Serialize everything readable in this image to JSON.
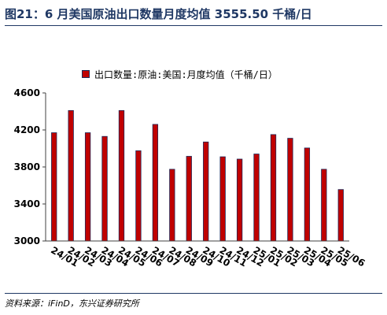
{
  "figure": {
    "title": "图21：6 月美国原油出口数量月度均值 3555.50 千桶/日",
    "source": "资料来源：iFinD，东兴证券研究所"
  },
  "chart_data": {
    "type": "bar",
    "title": "",
    "xlabel": "",
    "ylabel": "",
    "ylim": [
      3000,
      4600
    ],
    "yticks": [
      3000,
      3400,
      3800,
      4200,
      4600
    ],
    "grid": false,
    "legend_position": "top",
    "series": [
      {
        "name": "出口数量:原油:美国:月度均值（千桶/日）",
        "color": "#c00000",
        "values": [
          4170,
          4410,
          4170,
          4130,
          4410,
          3975,
          4260,
          3775,
          3915,
          4070,
          3910,
          3885,
          3940,
          4150,
          4110,
          4005,
          3775,
          3556
        ]
      }
    ],
    "categories": [
      "24/01",
      "24/02",
      "24/03",
      "24/04",
      "24/05",
      "24/06",
      "24/07",
      "24/08",
      "24/09",
      "24/10",
      "24/11",
      "24/12",
      "25/01",
      "25/02",
      "25/03",
      "25/04",
      "25/05",
      "25/06"
    ]
  }
}
